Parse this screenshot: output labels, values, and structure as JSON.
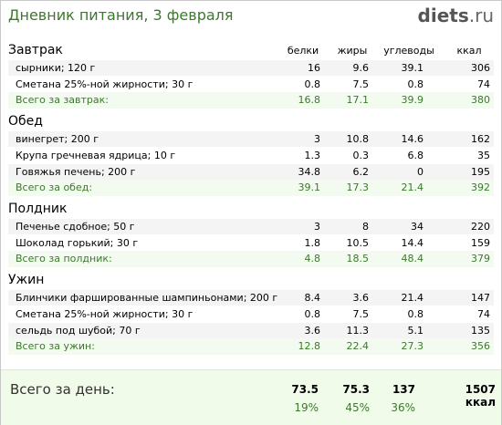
{
  "header": {
    "title": "Дневник питания, 3 февраля",
    "brand_main": "diets",
    "brand_tld": ".ru"
  },
  "columns": [
    "белки",
    "жиры",
    "углеводы",
    "ккал"
  ],
  "sections": [
    {
      "title": "Завтрак",
      "items": [
        {
          "name": "сырники; 120 г",
          "b": "16",
          "f": "9.6",
          "c": "39.1",
          "k": "306"
        },
        {
          "name": "Сметана 25%-ной жирности; 30 г",
          "b": "0.8",
          "f": "7.5",
          "c": "0.8",
          "k": "74"
        }
      ],
      "total": {
        "label": "Всего за завтрак:",
        "b": "16.8",
        "f": "17.1",
        "c": "39.9",
        "k": "380"
      }
    },
    {
      "title": "Обед",
      "items": [
        {
          "name": "винегрет; 200 г",
          "b": "3",
          "f": "10.8",
          "c": "14.6",
          "k": "162"
        },
        {
          "name": "Крупа гречневая ядрица; 10 г",
          "b": "1.3",
          "f": "0.3",
          "c": "6.8",
          "k": "35"
        },
        {
          "name": "Говяжья печень; 200 г",
          "b": "34.8",
          "f": "6.2",
          "c": "0",
          "k": "195"
        }
      ],
      "total": {
        "label": "Всего за обед:",
        "b": "39.1",
        "f": "17.3",
        "c": "21.4",
        "k": "392"
      }
    },
    {
      "title": "Полдник",
      "items": [
        {
          "name": "Печенье сдобное; 50 г",
          "b": "3",
          "f": "8",
          "c": "34",
          "k": "220"
        },
        {
          "name": "Шоколад горький; 30 г",
          "b": "1.8",
          "f": "10.5",
          "c": "14.4",
          "k": "159"
        }
      ],
      "total": {
        "label": "Всего за полдник:",
        "b": "4.8",
        "f": "18.5",
        "c": "48.4",
        "k": "379"
      }
    },
    {
      "title": "Ужин",
      "items": [
        {
          "name": "Блинчики фаршированные шампиньонами; 200 г",
          "b": "8.4",
          "f": "3.6",
          "c": "21.4",
          "k": "147"
        },
        {
          "name": "Сметана 25%-ной жирности; 30 г",
          "b": "0.8",
          "f": "7.5",
          "c": "0.8",
          "k": "74"
        },
        {
          "name": "сельдь под шубой; 70 г",
          "b": "3.6",
          "f": "11.3",
          "c": "5.1",
          "k": "135"
        }
      ],
      "total": {
        "label": "Всего за ужин:",
        "b": "12.8",
        "f": "22.4",
        "c": "27.3",
        "k": "356"
      }
    }
  ],
  "day": {
    "label": "Всего за день:",
    "b": "73.5",
    "f": "75.3",
    "c": "137",
    "k": "1507 ккал",
    "bp": "19%",
    "fp": "45%",
    "cp": "36%"
  }
}
